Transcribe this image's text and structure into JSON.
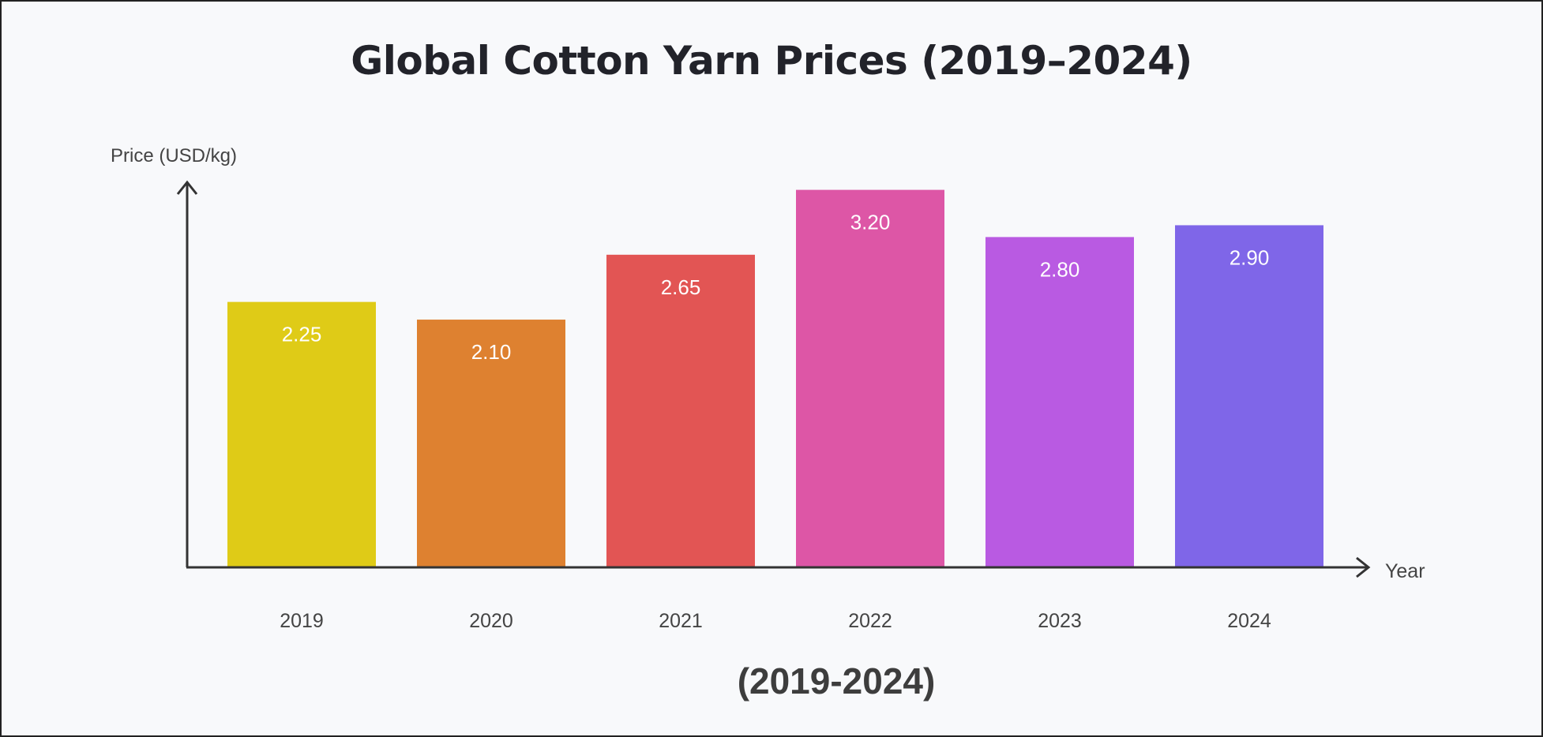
{
  "chart_data": {
    "type": "bar",
    "title": "Global Cotton Yarn Prices (2019–2024)",
    "subtitle": "(2019-2024)",
    "xlabel": "Year",
    "ylabel": "Price (USD/kg)",
    "categories": [
      "2019",
      "2020",
      "2021",
      "2022",
      "2023",
      "2024"
    ],
    "values": [
      2.25,
      2.1,
      2.65,
      3.2,
      2.8,
      2.9
    ],
    "data_labels": [
      "2.25",
      "2.10",
      "2.65",
      "3.20",
      "2.80",
      "2.90"
    ],
    "colors": [
      "#dfcb17",
      "#de8130",
      "#e25554",
      "#dd56a6",
      "#b95ae2",
      "#7f66e8"
    ],
    "ylim": [
      0,
      3.3
    ],
    "grid": false,
    "legend": "none"
  }
}
